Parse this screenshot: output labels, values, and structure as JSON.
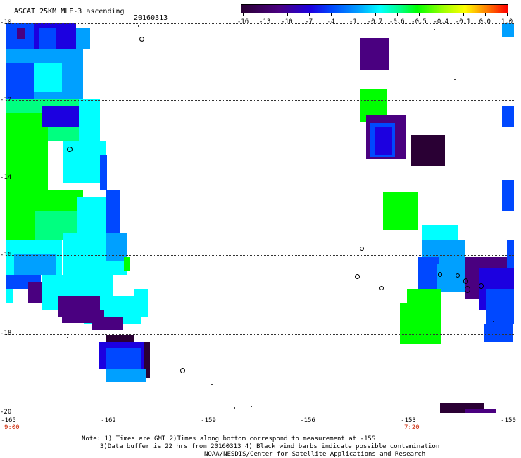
{
  "header": {
    "title": "ASCAT 25KM MLE-3 ascending",
    "date": "20160313"
  },
  "colorbar": {
    "labels": [
      "-16",
      "-13",
      "-10",
      "-7",
      "-4",
      "-1",
      "-0.7",
      "-0.6",
      "-0.5",
      "-0.4",
      "-0.1",
      "0.0",
      "1.0"
    ]
  },
  "axes": {
    "lat_labels": [
      "-10",
      "-12",
      "-14",
      "-16",
      "-18",
      "-20"
    ],
    "lon_labels": [
      "-165",
      "-162",
      "-159",
      "-156",
      "-153",
      "-150"
    ],
    "time_labels": [
      "9:00",
      "7:20"
    ]
  },
  "notes": {
    "line1": "Note: 1) Times are GMT 2)Times along bottom correspond to measurement at -15S",
    "line2": "3)Data buffer is 22 hrs from 20160313 4) Black wind barbs indicate possible contamination",
    "line3": "NOAA/NESDIS/Center for Satellite Applications and Research"
  },
  "palette": {
    "dark_purple": "#2a0034",
    "purple": "#4a0080",
    "blue": "#1c00e0",
    "mid_blue": "#0048ff",
    "sky": "#00a0ff",
    "cyan": "#00ffff",
    "teal_green": "#00ff80",
    "green": "#00ff00"
  }
}
